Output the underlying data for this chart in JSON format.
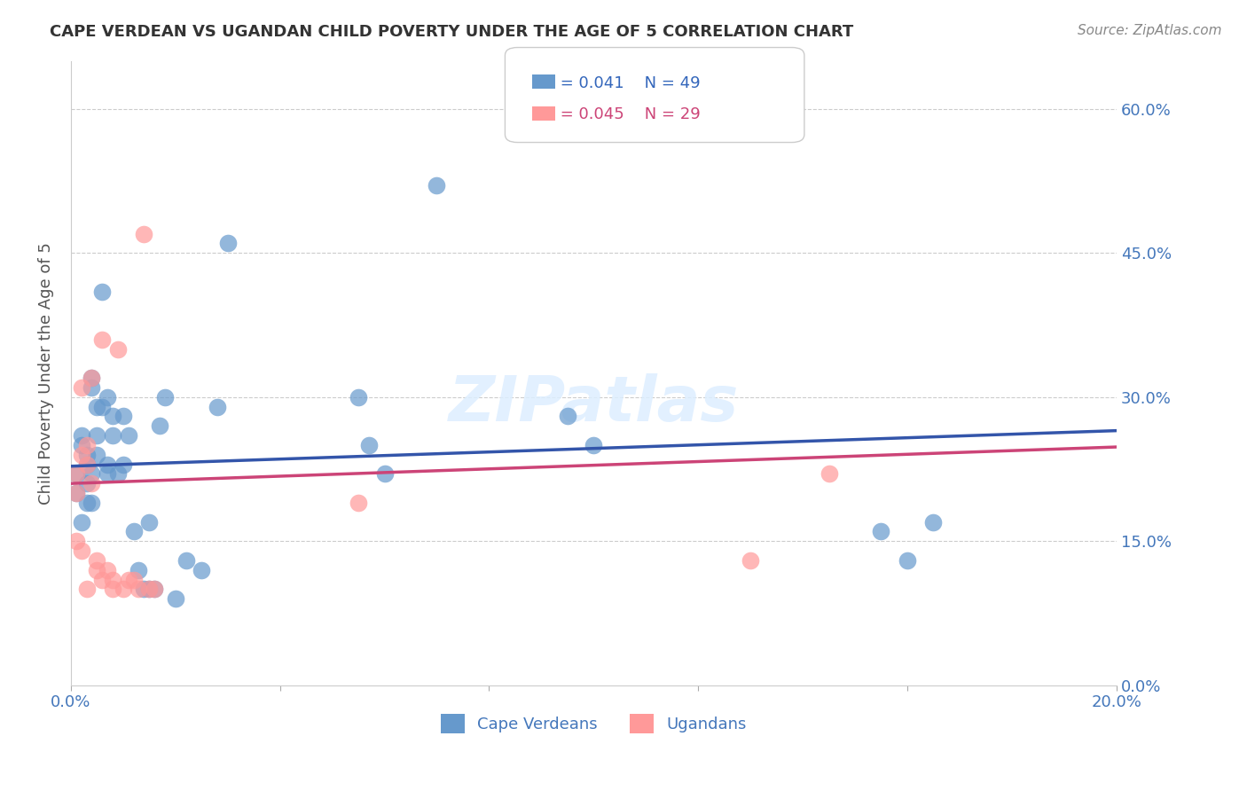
{
  "title": "CAPE VERDEAN VS UGANDAN CHILD POVERTY UNDER THE AGE OF 5 CORRELATION CHART",
  "source": "Source: ZipAtlas.com",
  "xlabel": "",
  "ylabel": "Child Poverty Under the Age of 5",
  "xlim": [
    0.0,
    0.2
  ],
  "ylim": [
    0.0,
    0.65
  ],
  "yticks": [
    0.0,
    0.15,
    0.3,
    0.45,
    0.6
  ],
  "xticks": [
    0.0,
    0.04,
    0.08,
    0.12,
    0.16,
    0.2
  ],
  "xtick_labels": [
    "0.0%",
    "",
    "",
    "",
    "",
    "20.0%"
  ],
  "ytick_labels": [
    "",
    "15.0%",
    "30.0%",
    "45.0%",
    "60.0%"
  ],
  "blue_color": "#6699CC",
  "pink_color": "#FF9999",
  "trend_blue": "#3355AA",
  "trend_pink": "#CC4477",
  "legend_blue_r": "R = 0.041",
  "legend_blue_n": "N = 49",
  "legend_pink_r": "R = 0.045",
  "legend_pink_n": "N = 29",
  "watermark": "ZIPatlas",
  "legend_label_blue": "Cape Verdeans",
  "legend_label_pink": "Ugandans",
  "blue_x": [
    0.001,
    0.001,
    0.002,
    0.002,
    0.002,
    0.003,
    0.003,
    0.003,
    0.003,
    0.004,
    0.004,
    0.004,
    0.004,
    0.005,
    0.005,
    0.005,
    0.006,
    0.006,
    0.007,
    0.007,
    0.007,
    0.008,
    0.008,
    0.009,
    0.01,
    0.01,
    0.011,
    0.012,
    0.013,
    0.014,
    0.015,
    0.015,
    0.016,
    0.017,
    0.018,
    0.02,
    0.022,
    0.025,
    0.028,
    0.03,
    0.055,
    0.057,
    0.06,
    0.07,
    0.095,
    0.1,
    0.155,
    0.16,
    0.165
  ],
  "blue_y": [
    0.22,
    0.2,
    0.25,
    0.26,
    0.17,
    0.23,
    0.24,
    0.21,
    0.19,
    0.31,
    0.32,
    0.22,
    0.19,
    0.29,
    0.26,
    0.24,
    0.41,
    0.29,
    0.23,
    0.3,
    0.22,
    0.28,
    0.26,
    0.22,
    0.28,
    0.23,
    0.26,
    0.16,
    0.12,
    0.1,
    0.1,
    0.17,
    0.1,
    0.27,
    0.3,
    0.09,
    0.13,
    0.12,
    0.29,
    0.46,
    0.3,
    0.25,
    0.22,
    0.52,
    0.28,
    0.25,
    0.16,
    0.13,
    0.17
  ],
  "pink_x": [
    0.001,
    0.001,
    0.001,
    0.002,
    0.002,
    0.002,
    0.003,
    0.003,
    0.003,
    0.004,
    0.004,
    0.005,
    0.005,
    0.006,
    0.006,
    0.007,
    0.008,
    0.008,
    0.009,
    0.01,
    0.011,
    0.012,
    0.013,
    0.014,
    0.015,
    0.016,
    0.055,
    0.13,
    0.145
  ],
  "pink_y": [
    0.2,
    0.22,
    0.15,
    0.31,
    0.24,
    0.14,
    0.23,
    0.25,
    0.1,
    0.32,
    0.21,
    0.13,
    0.12,
    0.36,
    0.11,
    0.12,
    0.11,
    0.1,
    0.35,
    0.1,
    0.11,
    0.11,
    0.1,
    0.47,
    0.1,
    0.1,
    0.19,
    0.13,
    0.22
  ],
  "blue_trend_x": [
    0.0,
    0.2
  ],
  "blue_trend_y": [
    0.228,
    0.265
  ],
  "pink_trend_x": [
    0.0,
    0.2
  ],
  "pink_trend_y": [
    0.21,
    0.248
  ]
}
